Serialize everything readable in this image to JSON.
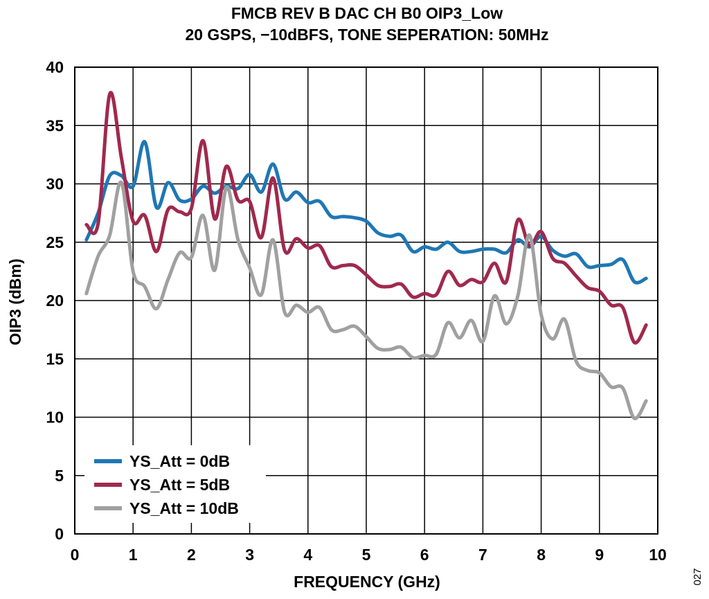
{
  "chart_data": {
    "type": "line",
    "title": "FMCB REV B DAC CH B0 OIP3_Low",
    "subtitle": "20 GSPS, −10dBFS, TONE SEPERATION: 50MHz",
    "xlabel": "FREQUENCY (GHz)",
    "ylabel": "OIP3 (dBm)",
    "xlim": [
      0,
      10
    ],
    "ylim": [
      0,
      40
    ],
    "x_ticks": [
      0,
      1,
      2,
      3,
      4,
      5,
      6,
      7,
      8,
      9,
      10
    ],
    "y_ticks": [
      0,
      5,
      10,
      15,
      20,
      25,
      30,
      35,
      40
    ],
    "grid": true,
    "legend_position": "bottom-left",
    "figure_id": "027",
    "series": [
      {
        "name": "YS_Att = 0dB",
        "color": "#1f77b4",
        "points": [
          [
            0.2,
            25.2
          ],
          [
            0.4,
            27.5
          ],
          [
            0.6,
            30.7
          ],
          [
            0.8,
            30.7
          ],
          [
            1.0,
            29.8
          ],
          [
            1.2,
            33.6
          ],
          [
            1.4,
            28.0
          ],
          [
            1.6,
            30.1
          ],
          [
            1.8,
            28.6
          ],
          [
            2.0,
            28.7
          ],
          [
            2.2,
            29.8
          ],
          [
            2.4,
            29.2
          ],
          [
            2.6,
            29.8
          ],
          [
            2.8,
            29.6
          ],
          [
            3.0,
            30.8
          ],
          [
            3.2,
            29.3
          ],
          [
            3.4,
            31.7
          ],
          [
            3.6,
            28.7
          ],
          [
            3.8,
            29.3
          ],
          [
            4.0,
            28.4
          ],
          [
            4.2,
            28.5
          ],
          [
            4.4,
            27.2
          ],
          [
            4.6,
            27.2
          ],
          [
            4.8,
            27.1
          ],
          [
            5.0,
            26.8
          ],
          [
            5.2,
            25.8
          ],
          [
            5.4,
            25.5
          ],
          [
            5.6,
            25.6
          ],
          [
            5.8,
            24.2
          ],
          [
            6.0,
            24.6
          ],
          [
            6.2,
            24.4
          ],
          [
            6.4,
            25.0
          ],
          [
            6.6,
            24.2
          ],
          [
            6.8,
            24.2
          ],
          [
            7.0,
            24.4
          ],
          [
            7.2,
            24.4
          ],
          [
            7.4,
            24.1
          ],
          [
            7.6,
            25.2
          ],
          [
            7.8,
            24.6
          ],
          [
            8.0,
            25.5
          ],
          [
            8.2,
            24.3
          ],
          [
            8.4,
            23.8
          ],
          [
            8.6,
            24.0
          ],
          [
            8.8,
            22.9
          ],
          [
            9.0,
            23.0
          ],
          [
            9.2,
            23.1
          ],
          [
            9.4,
            23.5
          ],
          [
            9.6,
            21.6
          ],
          [
            9.8,
            21.9
          ]
        ]
      },
      {
        "name": "YS_Att = 5dB",
        "color": "#a0294e",
        "points": [
          [
            0.2,
            26.5
          ],
          [
            0.4,
            26.6
          ],
          [
            0.6,
            37.7
          ],
          [
            0.8,
            32.2
          ],
          [
            1.0,
            26.8
          ],
          [
            1.2,
            27.3
          ],
          [
            1.4,
            24.2
          ],
          [
            1.6,
            27.8
          ],
          [
            1.8,
            27.6
          ],
          [
            2.0,
            27.9
          ],
          [
            2.2,
            33.7
          ],
          [
            2.4,
            27.0
          ],
          [
            2.6,
            31.5
          ],
          [
            2.8,
            28.6
          ],
          [
            3.0,
            28.5
          ],
          [
            3.2,
            25.4
          ],
          [
            3.4,
            30.5
          ],
          [
            3.6,
            24.3
          ],
          [
            3.8,
            25.3
          ],
          [
            4.0,
            24.5
          ],
          [
            4.2,
            24.7
          ],
          [
            4.4,
            22.9
          ],
          [
            4.6,
            23.0
          ],
          [
            4.8,
            23.0
          ],
          [
            5.0,
            22.2
          ],
          [
            5.2,
            21.3
          ],
          [
            5.4,
            21.2
          ],
          [
            5.6,
            21.4
          ],
          [
            5.8,
            20.3
          ],
          [
            6.0,
            20.6
          ],
          [
            6.2,
            20.5
          ],
          [
            6.4,
            22.5
          ],
          [
            6.6,
            21.3
          ],
          [
            6.8,
            21.8
          ],
          [
            7.0,
            21.6
          ],
          [
            7.2,
            23.2
          ],
          [
            7.4,
            21.6
          ],
          [
            7.6,
            26.9
          ],
          [
            7.8,
            24.7
          ],
          [
            8.0,
            25.9
          ],
          [
            8.2,
            23.6
          ],
          [
            8.4,
            23.2
          ],
          [
            8.6,
            22.1
          ],
          [
            8.8,
            21.1
          ],
          [
            9.0,
            20.8
          ],
          [
            9.2,
            19.6
          ],
          [
            9.4,
            19.4
          ],
          [
            9.6,
            16.4
          ],
          [
            9.8,
            17.9
          ]
        ]
      },
      {
        "name": "YS_Att = 10dB",
        "color": "#a0a0a0",
        "points": [
          [
            0.2,
            20.6
          ],
          [
            0.4,
            23.8
          ],
          [
            0.6,
            25.6
          ],
          [
            0.8,
            30.1
          ],
          [
            1.0,
            22.5
          ],
          [
            1.2,
            21.2
          ],
          [
            1.4,
            19.3
          ],
          [
            1.6,
            21.8
          ],
          [
            1.8,
            24.1
          ],
          [
            2.0,
            23.7
          ],
          [
            2.2,
            27.3
          ],
          [
            2.4,
            22.6
          ],
          [
            2.6,
            29.7
          ],
          [
            2.8,
            25.2
          ],
          [
            3.0,
            22.8
          ],
          [
            3.2,
            20.5
          ],
          [
            3.4,
            25.2
          ],
          [
            3.6,
            19.0
          ],
          [
            3.8,
            19.6
          ],
          [
            4.0,
            19.0
          ],
          [
            4.2,
            19.4
          ],
          [
            4.4,
            17.5
          ],
          [
            4.6,
            17.5
          ],
          [
            4.8,
            17.8
          ],
          [
            5.0,
            16.9
          ],
          [
            5.2,
            15.9
          ],
          [
            5.4,
            15.8
          ],
          [
            5.6,
            16.0
          ],
          [
            5.8,
            15.1
          ],
          [
            6.0,
            15.3
          ],
          [
            6.2,
            15.4
          ],
          [
            6.4,
            18.1
          ],
          [
            6.6,
            16.8
          ],
          [
            6.8,
            18.3
          ],
          [
            7.0,
            16.5
          ],
          [
            7.2,
            20.4
          ],
          [
            7.4,
            18.0
          ],
          [
            7.6,
            20.4
          ],
          [
            7.8,
            25.6
          ],
          [
            8.0,
            18.8
          ],
          [
            8.2,
            16.7
          ],
          [
            8.4,
            18.4
          ],
          [
            8.6,
            14.8
          ],
          [
            8.8,
            14.0
          ],
          [
            9.0,
            13.8
          ],
          [
            9.2,
            12.6
          ],
          [
            9.4,
            12.5
          ],
          [
            9.6,
            9.9
          ],
          [
            9.8,
            11.4
          ]
        ]
      }
    ]
  }
}
